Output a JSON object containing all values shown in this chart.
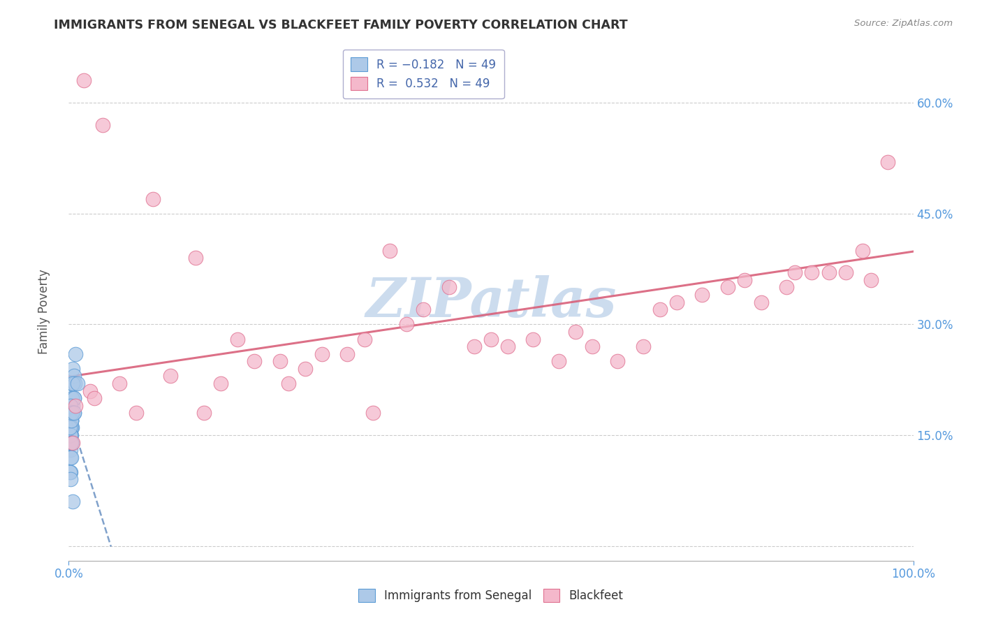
{
  "title": "IMMIGRANTS FROM SENEGAL VS BLACKFEET FAMILY POVERTY CORRELATION CHART",
  "source_text": "Source: ZipAtlas.com",
  "ylabel": "Family Poverty",
  "legend_label1": "Immigrants from Senegal",
  "legend_label2": "Blackfeet",
  "R1": -0.182,
  "R2": 0.532,
  "N1": 49,
  "N2": 49,
  "xlim": [
    0.0,
    100.0
  ],
  "ylim": [
    -2.0,
    68.0
  ],
  "yticks": [
    0,
    15,
    30,
    45,
    60
  ],
  "xtick_positions": [
    0,
    100
  ],
  "color_blue_fill": "#adc9e8",
  "color_blue_edge": "#5b9bd5",
  "color_pink_fill": "#f4b8cb",
  "color_pink_edge": "#e07090",
  "color_line_blue": "#4a7ab5",
  "color_line_pink": "#d9607a",
  "background_color": "#ffffff",
  "watermark_text": "ZIPatlas",
  "watermark_color": "#ccdcee",
  "grid_color": "#cccccc",
  "ytick_color": "#5599dd",
  "xtick_color": "#5599dd",
  "title_color": "#333333",
  "ylabel_color": "#555555",
  "blue_x": [
    0.5,
    0.3,
    0.8,
    0.4,
    0.6,
    0.2,
    0.7,
    0.5,
    0.3,
    0.1,
    0.4,
    0.6,
    0.3,
    0.5,
    0.2,
    0.4,
    0.3,
    0.2,
    0.1,
    0.6,
    0.4,
    0.2,
    0.3,
    0.5,
    0.2,
    0.1,
    1.0,
    0.3,
    0.4,
    0.5,
    0.2,
    0.3,
    0.1,
    0.2,
    0.6,
    0.3,
    0.2,
    0.1,
    0.3,
    0.4,
    0.2,
    0.2,
    0.4,
    0.1,
    0.3,
    0.6,
    0.2,
    0.3,
    0.5
  ],
  "blue_y": [
    24,
    22,
    26,
    20,
    23,
    16,
    22,
    19,
    17,
    18,
    18,
    20,
    16,
    18,
    15,
    20,
    15,
    17,
    18,
    20,
    18,
    19,
    17,
    22,
    13,
    14,
    22,
    17,
    16,
    18,
    14,
    16,
    14,
    15,
    18,
    14,
    15,
    16,
    17,
    18,
    10,
    12,
    14,
    10,
    14,
    18,
    9,
    12,
    6
  ],
  "pink_x": [
    1.8,
    4.0,
    10.0,
    15.0,
    20.0,
    25.0,
    30.0,
    35.0,
    38.0,
    42.0,
    45.0,
    50.0,
    55.0,
    58.0,
    62.0,
    65.0,
    70.0,
    75.0,
    80.0,
    85.0,
    88.0,
    90.0,
    92.0,
    94.0,
    95.0,
    97.0,
    0.5,
    2.5,
    6.0,
    12.0,
    18.0,
    22.0,
    28.0,
    33.0,
    40.0,
    48.0,
    52.0,
    60.0,
    68.0,
    72.0,
    78.0,
    82.0,
    86.0,
    0.8,
    3.0,
    8.0,
    16.0,
    26.0,
    36.0
  ],
  "pink_y": [
    63,
    57,
    47,
    39,
    28,
    25,
    26,
    28,
    40,
    32,
    35,
    28,
    28,
    25,
    27,
    25,
    32,
    34,
    36,
    35,
    37,
    37,
    37,
    40,
    36,
    52,
    14,
    21,
    22,
    23,
    22,
    25,
    24,
    26,
    30,
    27,
    27,
    29,
    27,
    33,
    35,
    33,
    37,
    19,
    20,
    18,
    18,
    22,
    18
  ]
}
